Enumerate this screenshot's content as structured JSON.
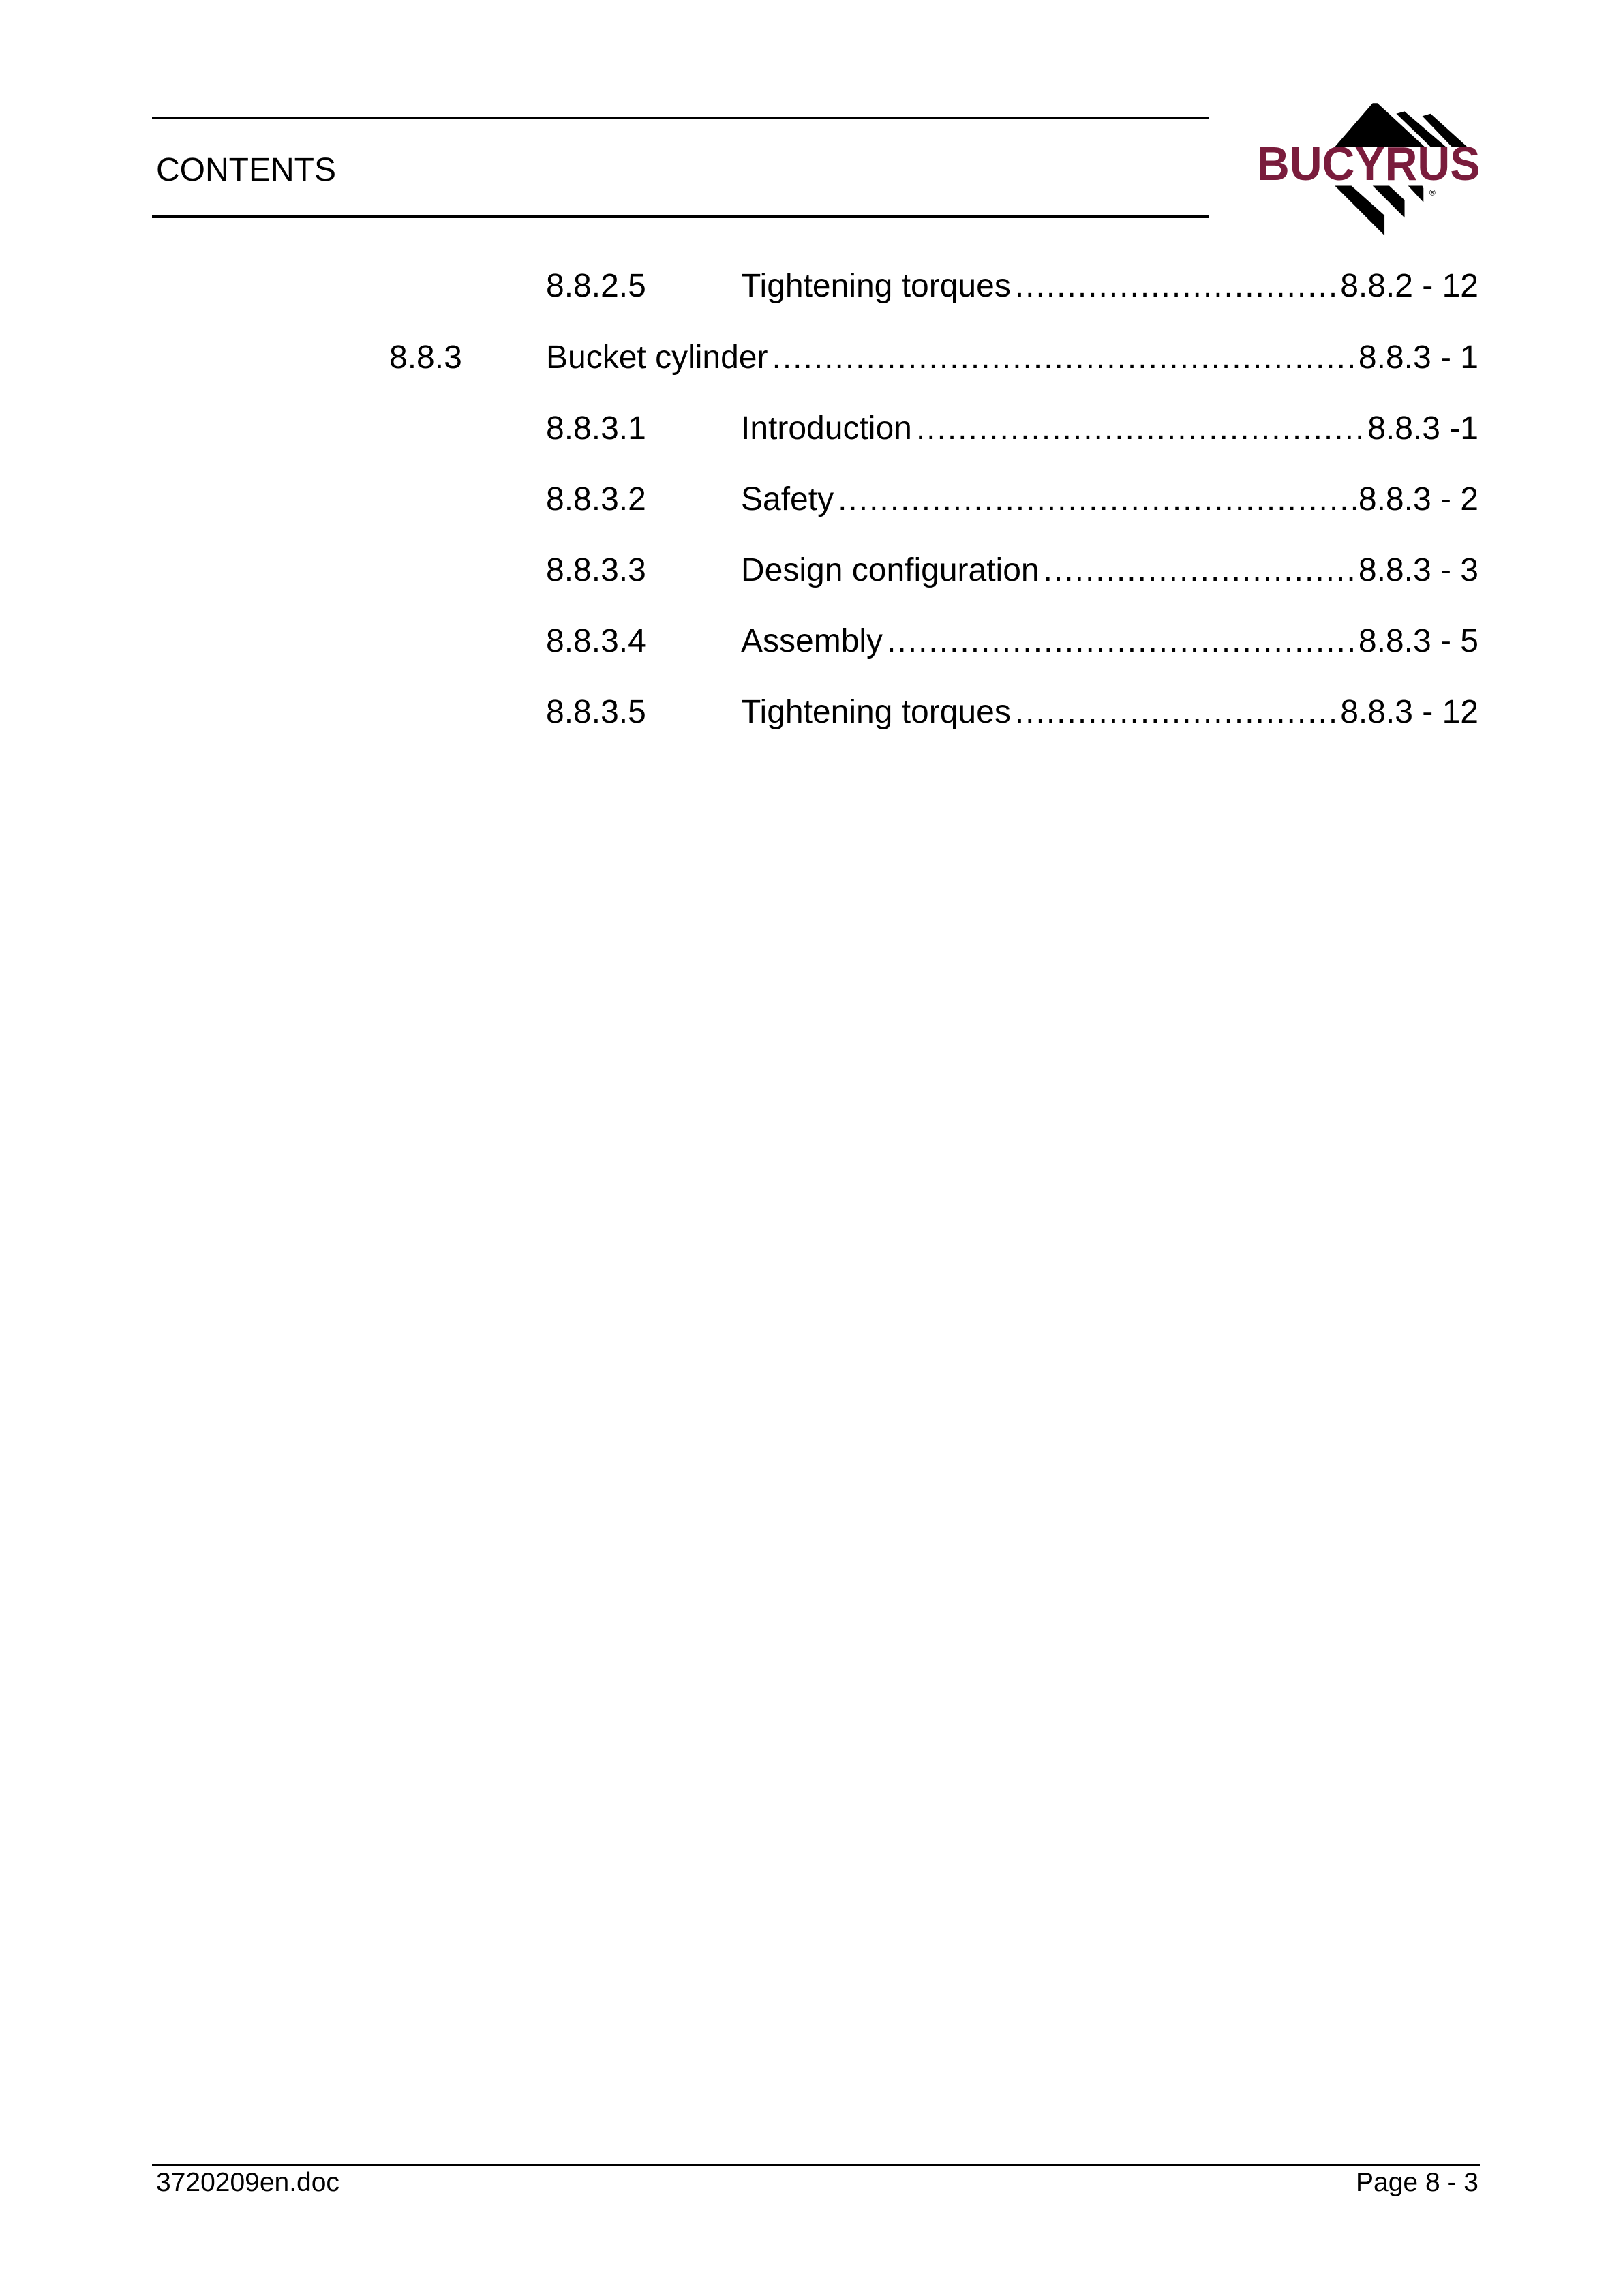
{
  "header": {
    "title": "CONTENTS",
    "logo_text": "BUCYRUS",
    "logo_color": "#7a1c3c"
  },
  "toc": [
    {
      "number": "8.8.2.5",
      "title": "Tightening torques",
      "page": "8.8.2 - 12",
      "level": 3
    },
    {
      "number": "8.8.3",
      "title": "Bucket cylinder",
      "page": "8.8.3 - 1",
      "level": 2
    },
    {
      "number": "8.8.3.1",
      "title": "Introduction",
      "page": "8.8.3 -1",
      "level": 3
    },
    {
      "number": "8.8.3.2",
      "title": "Safety",
      "page": "8.8.3 - 2",
      "level": 3
    },
    {
      "number": "8.8.3.3",
      "title": "Design configuration",
      "page": "8.8.3 - 3",
      "level": 3
    },
    {
      "number": "8.8.3.4",
      "title": "Assembly",
      "page": "8.8.3 - 5",
      "level": 3
    },
    {
      "number": "8.8.3.5",
      "title": "Tightening torques",
      "page": "8.8.3 - 12",
      "level": 3
    }
  ],
  "footer": {
    "filename": "3720209en.doc",
    "page": "Page 8 - 3"
  }
}
